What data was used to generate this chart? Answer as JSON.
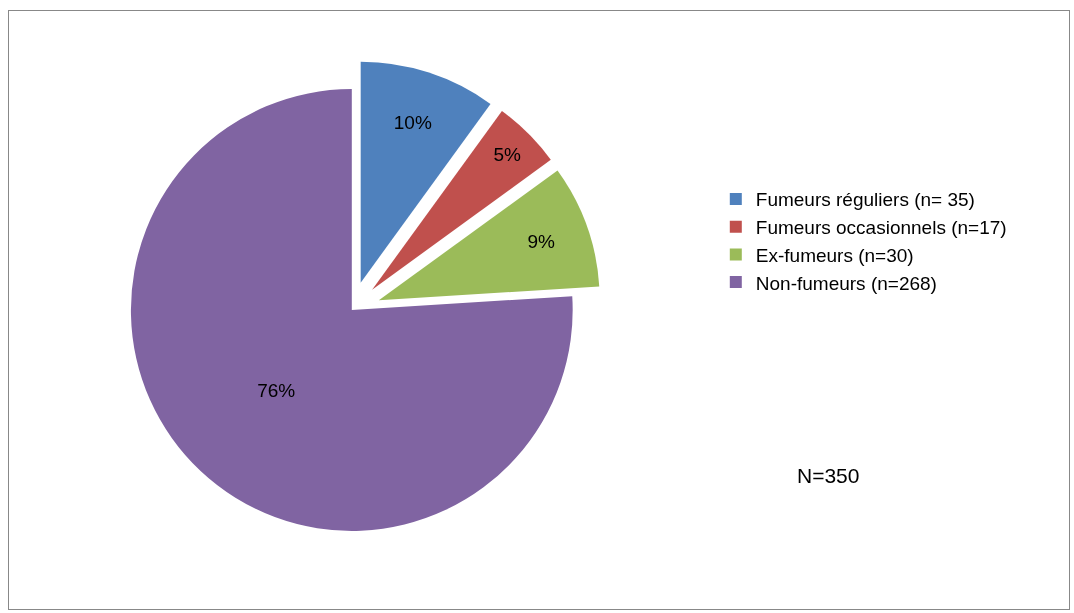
{
  "chart_data": {
    "type": "pie",
    "categories": [
      "Fumeurs réguliers (n= 35)",
      "Fumeurs occasionnels (n=17)",
      "Ex-fumeurs (n=30)",
      "Non-fumeurs (n=268)"
    ],
    "values": [
      10,
      5,
      9,
      76
    ],
    "value_labels": [
      "10%",
      "5%",
      "9%",
      "76%"
    ],
    "colors": [
      "#4f81bd",
      "#c0504d",
      "#9bbb59",
      "#8064a2"
    ],
    "legend": "right",
    "annotations": [
      "N=350"
    ]
  }
}
